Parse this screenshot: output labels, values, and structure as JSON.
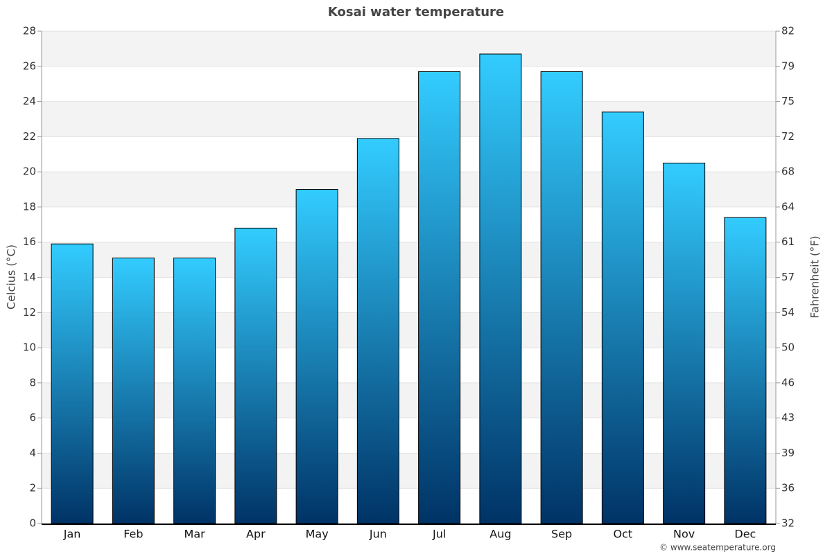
{
  "chart_data": {
    "type": "bar",
    "title": "Kosai water temperature",
    "ylabel": "Celcius (°C)",
    "y2label": "Fahrenheit (°F)",
    "categories": [
      "Jan",
      "Feb",
      "Mar",
      "Apr",
      "May",
      "Jun",
      "Jul",
      "Aug",
      "Sep",
      "Oct",
      "Nov",
      "Dec"
    ],
    "values": [
      15.9,
      15.1,
      15.1,
      16.8,
      19.0,
      21.9,
      25.7,
      26.7,
      25.7,
      23.4,
      20.5,
      17.4
    ],
    "color_top": "#33ccff",
    "color_bottom": "#003366",
    "ylim": [
      0,
      28
    ],
    "yticks": [
      0,
      2,
      4,
      6,
      8,
      10,
      12,
      14,
      16,
      18,
      20,
      22,
      24,
      26,
      28
    ],
    "y2lim": [
      32,
      82.4
    ],
    "y2ticks": [
      {
        "value": 32,
        "label": "32"
      },
      {
        "value": 35.6,
        "label": "36"
      },
      {
        "value": 39.2,
        "label": "39"
      },
      {
        "value": 42.8,
        "label": "43"
      },
      {
        "value": 46.4,
        "label": "46"
      },
      {
        "value": 50,
        "label": "50"
      },
      {
        "value": 53.6,
        "label": "54"
      },
      {
        "value": 57.2,
        "label": "57"
      },
      {
        "value": 60.8,
        "label": "61"
      },
      {
        "value": 64.4,
        "label": "64"
      },
      {
        "value": 68,
        "label": "68"
      },
      {
        "value": 71.6,
        "label": "72"
      },
      {
        "value": 75.2,
        "label": "75"
      },
      {
        "value": 78.8,
        "label": "79"
      },
      {
        "value": 82.4,
        "label": "82"
      }
    ],
    "grid": true,
    "credit": "© www.seatemperature.org"
  }
}
